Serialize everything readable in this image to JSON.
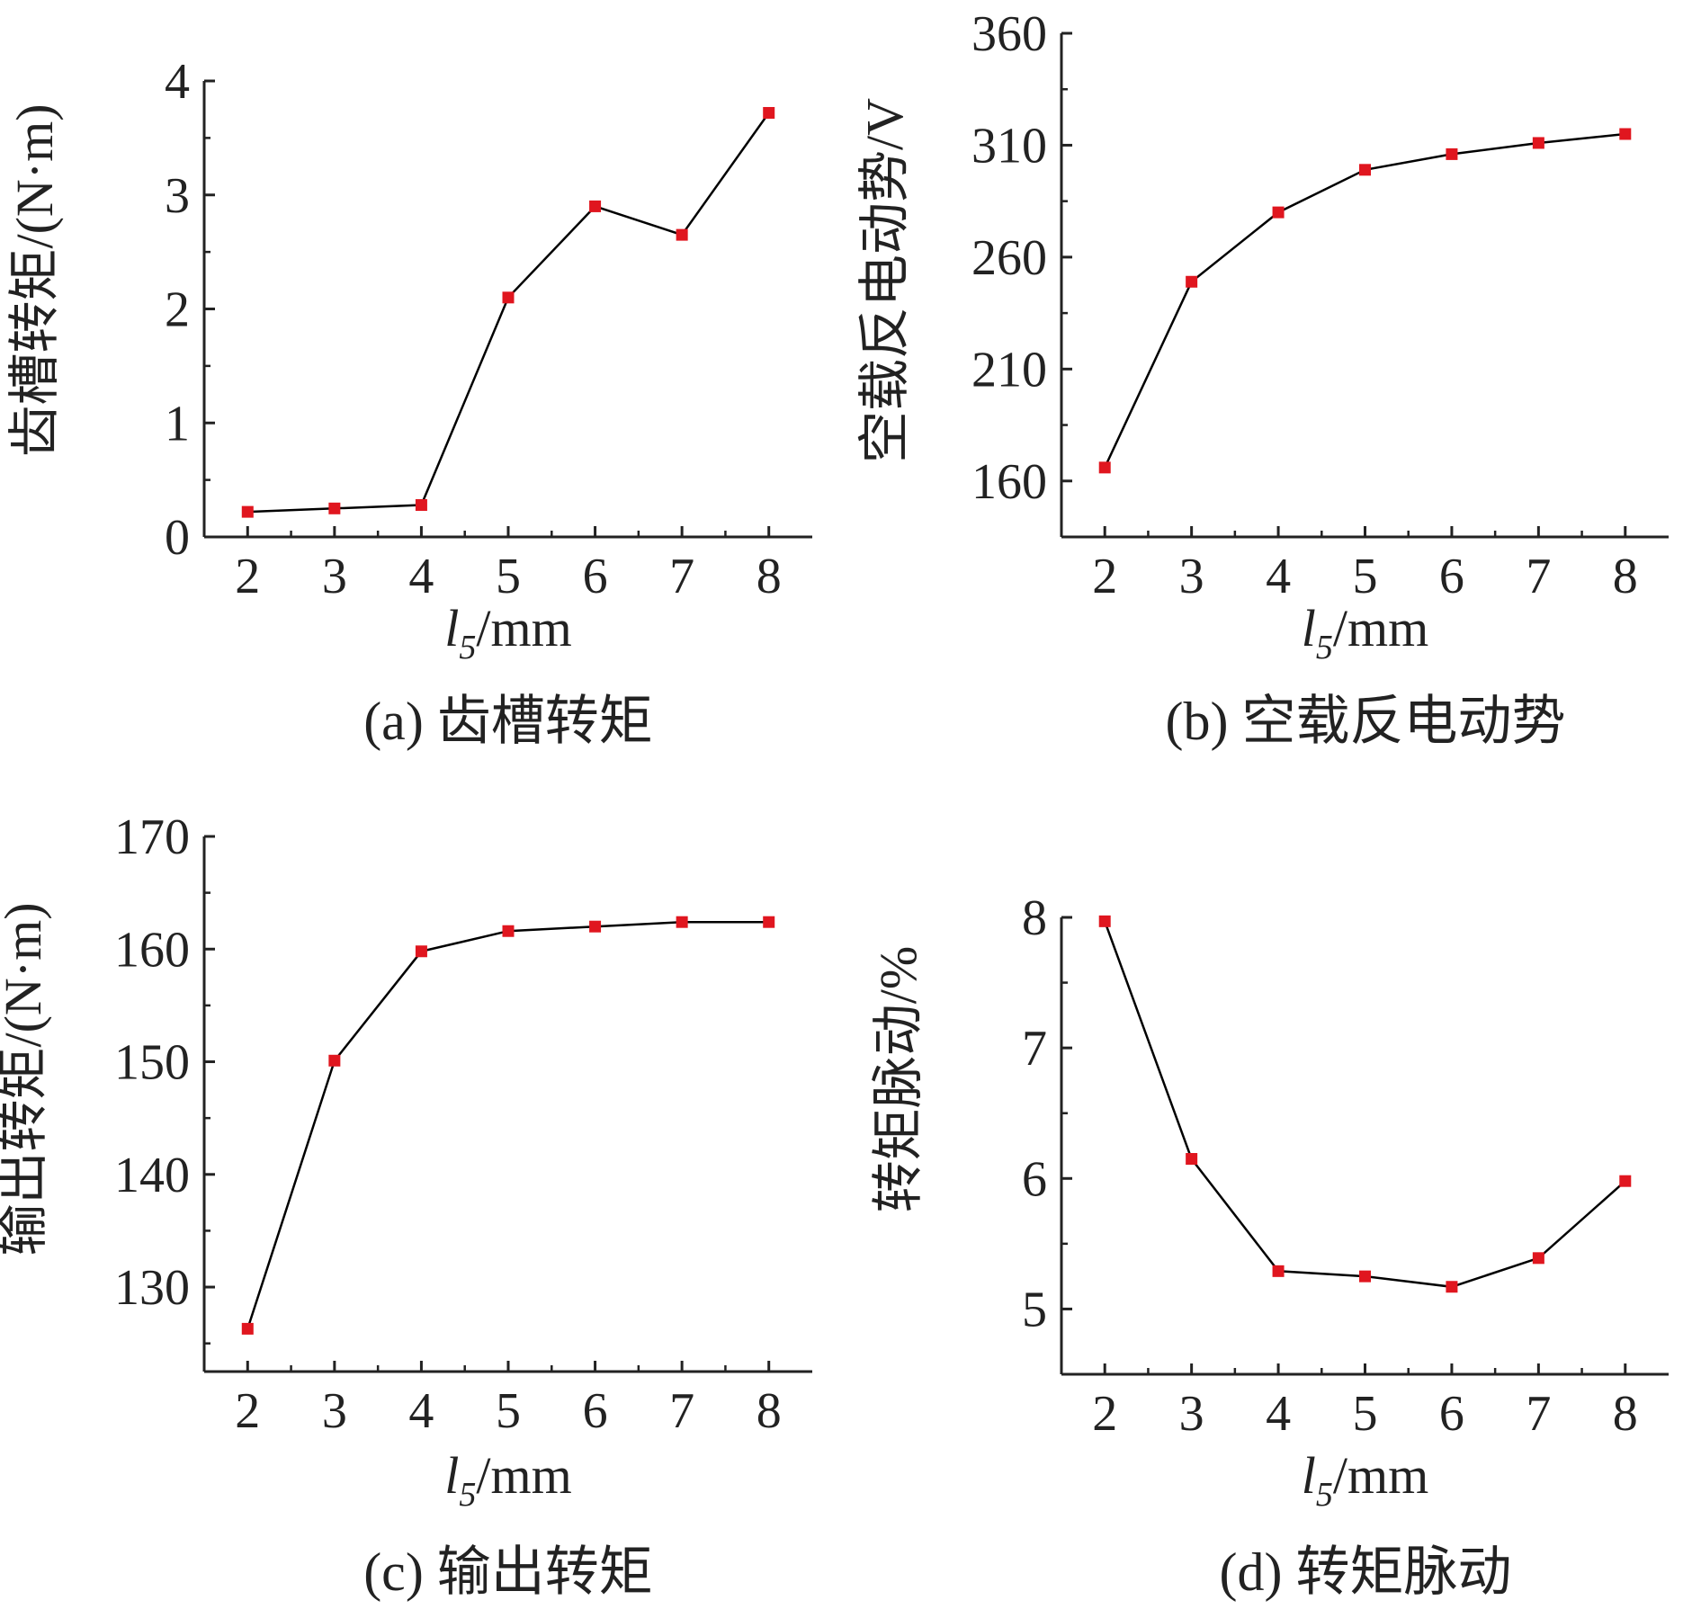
{
  "chart_data": [
    {
      "type": "line",
      "caption": "(a) 齿槽转矩",
      "xlabel": "l5/mm",
      "ylabel": "齿槽转矩/(N·m)",
      "x": [
        2,
        3,
        4,
        5,
        6,
        7,
        8
      ],
      "series": [
        {
          "values": [
            0.22,
            0.25,
            0.28,
            2.1,
            2.9,
            2.65,
            3.72
          ]
        }
      ],
      "xlim": [
        1.5,
        8.5
      ],
      "ylim": [
        0,
        4
      ],
      "xticks": [
        "2",
        "3",
        "4",
        "5",
        "6",
        "7",
        "8"
      ],
      "yticks": [
        "0",
        "1",
        "2",
        "3",
        "4"
      ],
      "grid": false,
      "marker": "square",
      "marker_color": "#e0161f",
      "line_color": "#000000"
    },
    {
      "type": "line",
      "caption": "(b) 空载反电动势",
      "xlabel": "l5/mm",
      "ylabel": "空载反电动势/V",
      "x": [
        2,
        3,
        4,
        5,
        6,
        7,
        8
      ],
      "series": [
        {
          "values": [
            166,
            249,
            280,
            299,
            306,
            311,
            315
          ]
        }
      ],
      "xlim": [
        1.5,
        8.5
      ],
      "ylim": [
        135,
        360
      ],
      "xticks": [
        "2",
        "3",
        "4",
        "5",
        "6",
        "7",
        "8"
      ],
      "yticks": [
        "160",
        "210",
        "260",
        "310",
        "360"
      ],
      "grid": false,
      "marker": "square",
      "marker_color": "#e0161f",
      "line_color": "#000000"
    },
    {
      "type": "line",
      "caption": "(c) 输出转矩",
      "xlabel": "l5/mm",
      "ylabel": "输出转矩/(N·m)",
      "x": [
        2,
        3,
        4,
        5,
        6,
        7,
        8
      ],
      "series": [
        {
          "values": [
            126.3,
            150.1,
            159.8,
            161.6,
            162.0,
            162.4,
            162.4
          ]
        }
      ],
      "xlim": [
        1.5,
        8.5
      ],
      "ylim": [
        122.5,
        170
      ],
      "xticks": [
        "2",
        "3",
        "4",
        "5",
        "6",
        "7",
        "8"
      ],
      "yticks": [
        "130",
        "140",
        "150",
        "160",
        "170"
      ],
      "grid": false,
      "marker": "square",
      "marker_color": "#e0161f",
      "line_color": "#000000"
    },
    {
      "type": "line",
      "caption": "(d) 转矩脉动",
      "xlabel": "l5/mm",
      "ylabel": "转矩脉动/%",
      "x": [
        2,
        3,
        4,
        5,
        6,
        7,
        8
      ],
      "series": [
        {
          "values": [
            7.97,
            6.15,
            5.29,
            5.25,
            5.17,
            5.39,
            5.98
          ]
        }
      ],
      "xlim": [
        1.5,
        8.5
      ],
      "ylim": [
        4.5,
        8
      ],
      "xticks": [
        "2",
        "3",
        "4",
        "5",
        "6",
        "7",
        "8"
      ],
      "yticks": [
        "5",
        "6",
        "7",
        "8"
      ],
      "grid": false,
      "marker": "square",
      "marker_color": "#e0161f",
      "line_color": "#000000"
    }
  ]
}
